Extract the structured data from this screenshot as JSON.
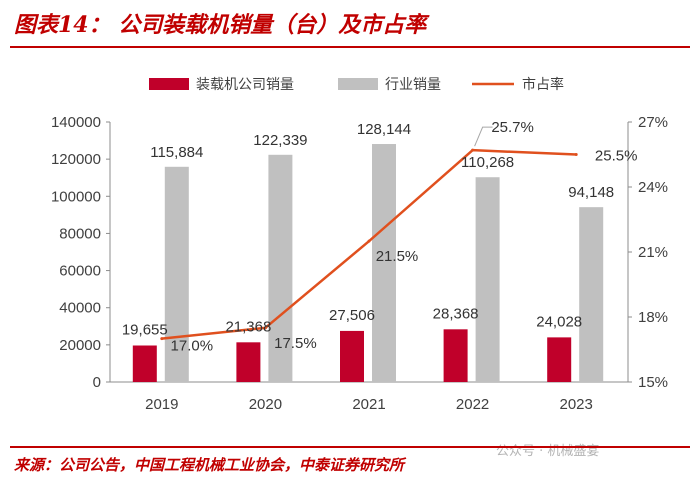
{
  "title": "图表14： 公司装载机销量（台）及市占率",
  "source": "来源：公司公告，中国工程机械工业协会，中泰证券研究所",
  "watermark": "公众号 · 机械盛宴",
  "colors": {
    "company_bar": "#c0002a",
    "industry_bar": "#c0c0c0",
    "share_line": "#e0501e",
    "accent": "#c00000"
  },
  "chart_data": {
    "type": "bar",
    "categories": [
      "2019",
      "2020",
      "2021",
      "2022",
      "2023"
    ],
    "series": [
      {
        "name": "装载机公司销量",
        "kind": "bar",
        "axis": "left",
        "values": [
          19655,
          21368,
          27506,
          28368,
          24028
        ],
        "labels": [
          "19,655",
          "21,368",
          "27,506",
          "28,368",
          "24,028"
        ]
      },
      {
        "name": "行业销量",
        "kind": "bar",
        "axis": "left",
        "values": [
          115884,
          122339,
          128144,
          110268,
          94148
        ],
        "labels": [
          "115,884",
          "122,339",
          "128,144",
          "110,268",
          "94,148"
        ]
      },
      {
        "name": "市占率",
        "kind": "line",
        "axis": "right",
        "values": [
          17.0,
          17.5,
          21.5,
          25.7,
          25.5
        ],
        "labels": [
          "17.0%",
          "17.5%",
          "21.5%",
          "25.7%",
          "25.5%"
        ]
      }
    ],
    "y_left": {
      "min": 0,
      "max": 140000,
      "ticks": [
        0,
        20000,
        40000,
        60000,
        80000,
        100000,
        120000,
        140000
      ],
      "tick_labels": [
        "0",
        "20000",
        "40000",
        "60000",
        "80000",
        "100000",
        "120000",
        "140000"
      ]
    },
    "y_right": {
      "min": 15,
      "max": 27,
      "ticks": [
        15,
        18,
        21,
        24,
        27
      ],
      "tick_labels": [
        "15%",
        "18%",
        "21%",
        "24%",
        "27%"
      ]
    },
    "grid": false,
    "legend_position": "top"
  }
}
